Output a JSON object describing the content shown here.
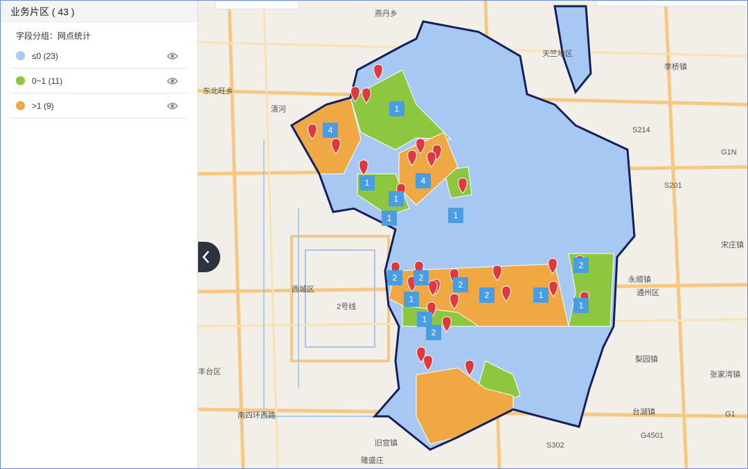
{
  "panel": {
    "title": "业务片区 ( 43 )",
    "subtitle": "字段分组：网点统计",
    "legend": [
      {
        "label": "≤0 (23)",
        "color": "#a6c8f2"
      },
      {
        "label": "0~1 (11)",
        "color": "#8dc63f"
      },
      {
        "label": ">1 (9)",
        "color": "#f0a845"
      }
    ]
  },
  "map": {
    "places": [
      "燕丹乡",
      "天竺地区",
      "东北旺乡",
      "清河",
      "李桥镇",
      "宋庄镇",
      "永顺镇",
      "通州区",
      "西城区",
      "梨园镇",
      "张家湾镇",
      "丰台区",
      "台湖镇",
      "旧宫镇",
      "隆盛庄",
      "南四环西路",
      "2号线",
      "S214",
      "S201",
      "G1N",
      "G1",
      "G4501",
      "S302"
    ],
    "clusters": [
      4,
      1,
      4,
      1,
      1,
      1,
      1,
      2,
      2,
      2,
      2,
      1,
      1,
      2,
      1,
      1,
      2
    ]
  }
}
